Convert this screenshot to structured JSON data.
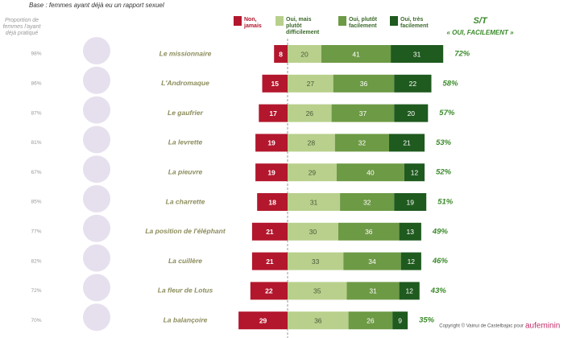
{
  "chart_data": {
    "type": "diverging_bar",
    "subtitle": "Base :  femmes ayant déjà eu un rapport sexuel",
    "practiced_label": "Proportion de femmes l'ayant déjà pratiqué",
    "categories": [
      "Le missionnaire",
      "L'Andromaque",
      "Le gaufrier",
      "La levrette",
      "La pieuvre",
      "La charrette",
      "La position de l'éléphant",
      "La cuillère",
      "La fleur de Lotus",
      "La balançoire"
    ],
    "practiced": {
      "values": [
        98,
        86,
        87,
        81,
        67,
        85,
        77,
        82,
        72,
        70
      ],
      "value_labels": [
        "98%",
        "86%",
        "87%",
        "81%",
        "67%",
        "85%",
        "77%",
        "82%",
        "72%",
        "70%"
      ]
    },
    "series": [
      {
        "name": "Non, jamais",
        "color": "#b3172d",
        "side": "negative",
        "values": [
          8,
          15,
          17,
          19,
          19,
          18,
          21,
          21,
          22,
          29
        ]
      },
      {
        "name": "Oui, mais plutôt difficilement",
        "color": "#b8d08c",
        "values": [
          20,
          27,
          26,
          28,
          29,
          31,
          30,
          33,
          35,
          36
        ]
      },
      {
        "name": "Oui, plutôt facilement",
        "color": "#6d9a45",
        "values": [
          41,
          36,
          37,
          32,
          40,
          32,
          36,
          34,
          31,
          26
        ]
      },
      {
        "name": "Oui, très facilement",
        "color": "#1f5a1f",
        "values": [
          31,
          22,
          20,
          21,
          12,
          19,
          13,
          12,
          12,
          9
        ]
      }
    ],
    "subtotal_title": "S/T",
    "subtotal_subtitle": "« OUI, FACILEMENT »",
    "subtotal": {
      "values": [
        72,
        58,
        57,
        53,
        52,
        51,
        49,
        46,
        43,
        35
      ],
      "value_labels": [
        "72%",
        "58%",
        "57%",
        "53%",
        "52%",
        "51%",
        "49%",
        "46%",
        "43%",
        "35%"
      ]
    },
    "copyright": "Copyright © Vainui de Castelbajac pour",
    "brand": "aufeminin"
  }
}
